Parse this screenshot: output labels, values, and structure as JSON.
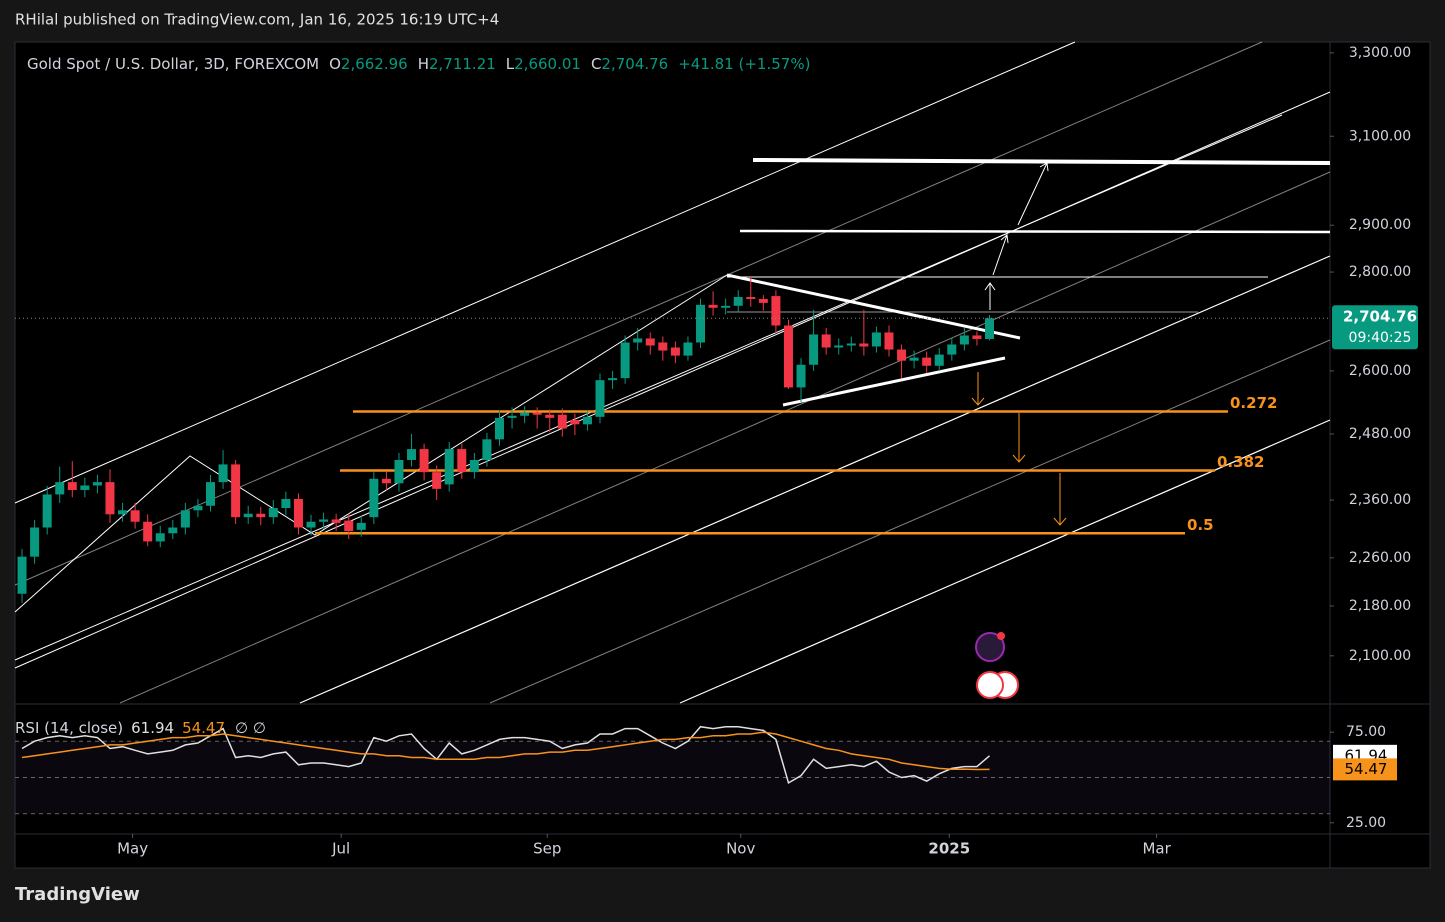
{
  "header": {
    "published": "RHilal published on TradingView.com, Jan 16, 2025 16:19 UTC+4"
  },
  "footer": {
    "brand": "TradingView"
  },
  "chart_data": [
    {
      "type": "candlestick",
      "title": "Gold Spot / U.S. Dollar, 3D, FOREXCOM",
      "legend": {
        "open_label": "O",
        "open": "2,662.96",
        "high_label": "H",
        "high": "2,711.21",
        "low_label": "L",
        "low": "2,660.01",
        "close_label": "C",
        "close": "2,704.76",
        "change": "+41.81 (+1.57%)"
      },
      "open": [
        2200,
        2262,
        2312,
        2370,
        2392,
        2378,
        2386,
        2392,
        2335,
        2342,
        2322,
        2288,
        2302,
        2312,
        2342,
        2350,
        2392,
        2424,
        2330,
        2336,
        2330,
        2346,
        2362,
        2312,
        2322,
        2326,
        2324,
        2308,
        2330,
        2398,
        2390,
        2432,
        2452,
        2410,
        2388,
        2452,
        2410,
        2432,
        2470,
        2510,
        2514,
        2520,
        2516,
        2516,
        2506,
        2498,
        2512,
        2582,
        2586,
        2656,
        2664,
        2656,
        2646,
        2630,
        2656,
        2732,
        2726,
        2730,
        2748,
        2744,
        2750,
        2690,
        2568,
        2612,
        2672,
        2646,
        2650,
        2654,
        2648,
        2676,
        2642,
        2620,
        2626,
        2610,
        2632,
        2652,
        2670,
        2662.96
      ],
      "high": [
        2275,
        2325,
        2385,
        2420,
        2430,
        2400,
        2405,
        2415,
        2355,
        2355,
        2335,
        2315,
        2325,
        2355,
        2362,
        2405,
        2450,
        2432,
        2350,
        2348,
        2360,
        2375,
        2372,
        2334,
        2338,
        2336,
        2336,
        2332,
        2410,
        2412,
        2445,
        2480,
        2462,
        2422,
        2465,
        2462,
        2445,
        2482,
        2524,
        2530,
        2532,
        2530,
        2526,
        2528,
        2518,
        2525,
        2595,
        2600,
        2670,
        2685,
        2676,
        2668,
        2658,
        2668,
        2745,
        2760,
        2745,
        2762,
        2790,
        2752,
        2762,
        2702,
        2625,
        2722,
        2685,
        2664,
        2668,
        2722,
        2688,
        2690,
        2652,
        2640,
        2638,
        2645,
        2665,
        2685,
        2678,
        2711.21
      ],
      "low": [
        2185,
        2250,
        2300,
        2355,
        2365,
        2365,
        2372,
        2320,
        2322,
        2310,
        2280,
        2278,
        2292,
        2300,
        2330,
        2340,
        2380,
        2318,
        2318,
        2316,
        2318,
        2334,
        2300,
        2298,
        2310,
        2306,
        2292,
        2296,
        2318,
        2378,
        2375,
        2420,
        2395,
        2360,
        2375,
        2398,
        2398,
        2420,
        2458,
        2490,
        2500,
        2490,
        2484,
        2475,
        2478,
        2486,
        2500,
        2565,
        2575,
        2640,
        2632,
        2620,
        2615,
        2620,
        2645,
        2710,
        2712,
        2718,
        2728,
        2720,
        2675,
        2565,
        2540,
        2600,
        2632,
        2632,
        2638,
        2630,
        2636,
        2628,
        2585,
        2605,
        2596,
        2600,
        2620,
        2640,
        2650,
        2660.01
      ],
      "close": [
        2262,
        2312,
        2370,
        2392,
        2378,
        2386,
        2392,
        2335,
        2342,
        2322,
        2288,
        2302,
        2312,
        2342,
        2350,
        2392,
        2424,
        2330,
        2336,
        2330,
        2346,
        2362,
        2312,
        2322,
        2326,
        2320,
        2306,
        2320,
        2398,
        2390,
        2432,
        2452,
        2410,
        2380,
        2452,
        2410,
        2432,
        2470,
        2510,
        2514,
        2520,
        2516,
        2510,
        2490,
        2498,
        2512,
        2582,
        2586,
        2656,
        2664,
        2650,
        2640,
        2630,
        2656,
        2732,
        2726,
        2730,
        2748,
        2744,
        2736,
        2690,
        2568,
        2612,
        2672,
        2646,
        2650,
        2654,
        2648,
        2676,
        2642,
        2620,
        2626,
        2610,
        2632,
        2652,
        2670,
        2663,
        2704.76
      ],
      "up_color": "#089981",
      "down_color": "#f23645",
      "xlim": [
        -0.56,
        104.1
      ],
      "xticks": [
        {
          "value": 8.8,
          "label": "May"
        },
        {
          "value": 25.4,
          "label": "Jul"
        },
        {
          "value": 41.8,
          "label": "Sep"
        },
        {
          "value": 57.2,
          "label": "Nov"
        },
        {
          "value": 73.8,
          "label": "2025"
        },
        {
          "value": 90.3,
          "label": "Mar"
        }
      ],
      "ylim": [
        2027,
        3327
      ],
      "log_scale": true,
      "yticks": [
        {
          "value": 3300,
          "label": "3,300.00"
        },
        {
          "value": 3100,
          "label": "3,100.00"
        },
        {
          "value": 2900,
          "label": "2,900.00"
        },
        {
          "value": 2800,
          "label": "2,800.00"
        },
        {
          "value": 2600,
          "label": "2,600.00"
        },
        {
          "value": 2480,
          "label": "2,480.00"
        },
        {
          "value": 2360,
          "label": "2,360.00"
        },
        {
          "value": 2260,
          "label": "2,260.00"
        },
        {
          "value": 2180,
          "label": "2,180.00"
        },
        {
          "value": 2100,
          "label": "2,100.00"
        }
      ],
      "last_price_label": "2,704.76",
      "countdown": "09:40:25",
      "fib_levels": [
        {
          "label": "0.272",
          "value": 2522
        },
        {
          "label": "0.382",
          "value": 2413
        },
        {
          "label": "0.5",
          "value": 2302
        }
      ],
      "fib_color": "#f7931a"
    },
    {
      "type": "line",
      "title": "RSI (14, close)",
      "legend_extra": "∅  ∅",
      "series": [
        {
          "name": "RSI",
          "color": "#e0e0e0",
          "values": [
            66,
            70,
            72,
            73,
            72,
            73,
            72,
            66,
            67,
            65,
            63,
            64,
            65,
            68,
            69,
            73,
            77,
            61,
            62,
            61,
            63,
            64,
            57,
            58,
            58,
            57,
            56,
            58,
            72,
            70,
            73,
            74,
            66,
            60,
            69,
            63,
            65,
            68,
            71,
            72,
            72,
            71,
            70,
            66,
            68,
            69,
            74,
            74,
            77,
            77,
            73,
            69,
            66,
            70,
            78,
            77,
            78,
            78,
            77,
            76,
            71,
            47,
            51,
            60,
            55,
            56,
            57,
            56,
            59,
            53,
            50,
            51,
            48,
            52,
            55,
            56,
            56,
            61.94
          ]
        },
        {
          "name": "RSI MA",
          "color": "#f7931a",
          "values": [
            61,
            62,
            63,
            64,
            65,
            66,
            67,
            68,
            68,
            69,
            70,
            71,
            72,
            72,
            73,
            73,
            74,
            73,
            72,
            71,
            70,
            69,
            68,
            67,
            66,
            65,
            64,
            63,
            63,
            62,
            62,
            61,
            61,
            60,
            60,
            60,
            60,
            61,
            61,
            62,
            63,
            63,
            64,
            64,
            65,
            65,
            66,
            67,
            68,
            69,
            70,
            71,
            71,
            72,
            72,
            73,
            73,
            74,
            74,
            75,
            74,
            72,
            70,
            68,
            66,
            65,
            63,
            62,
            61,
            60,
            58,
            57,
            56,
            55,
            54.5,
            54.6,
            54.4,
            54.47
          ]
        }
      ],
      "ylim": [
        21,
        90
      ],
      "yticks": [
        {
          "value": 75,
          "label": "75.00"
        },
        {
          "value": 25,
          "label": "25.00"
        }
      ],
      "band_levels": [
        70,
        50,
        30
      ]
    }
  ]
}
